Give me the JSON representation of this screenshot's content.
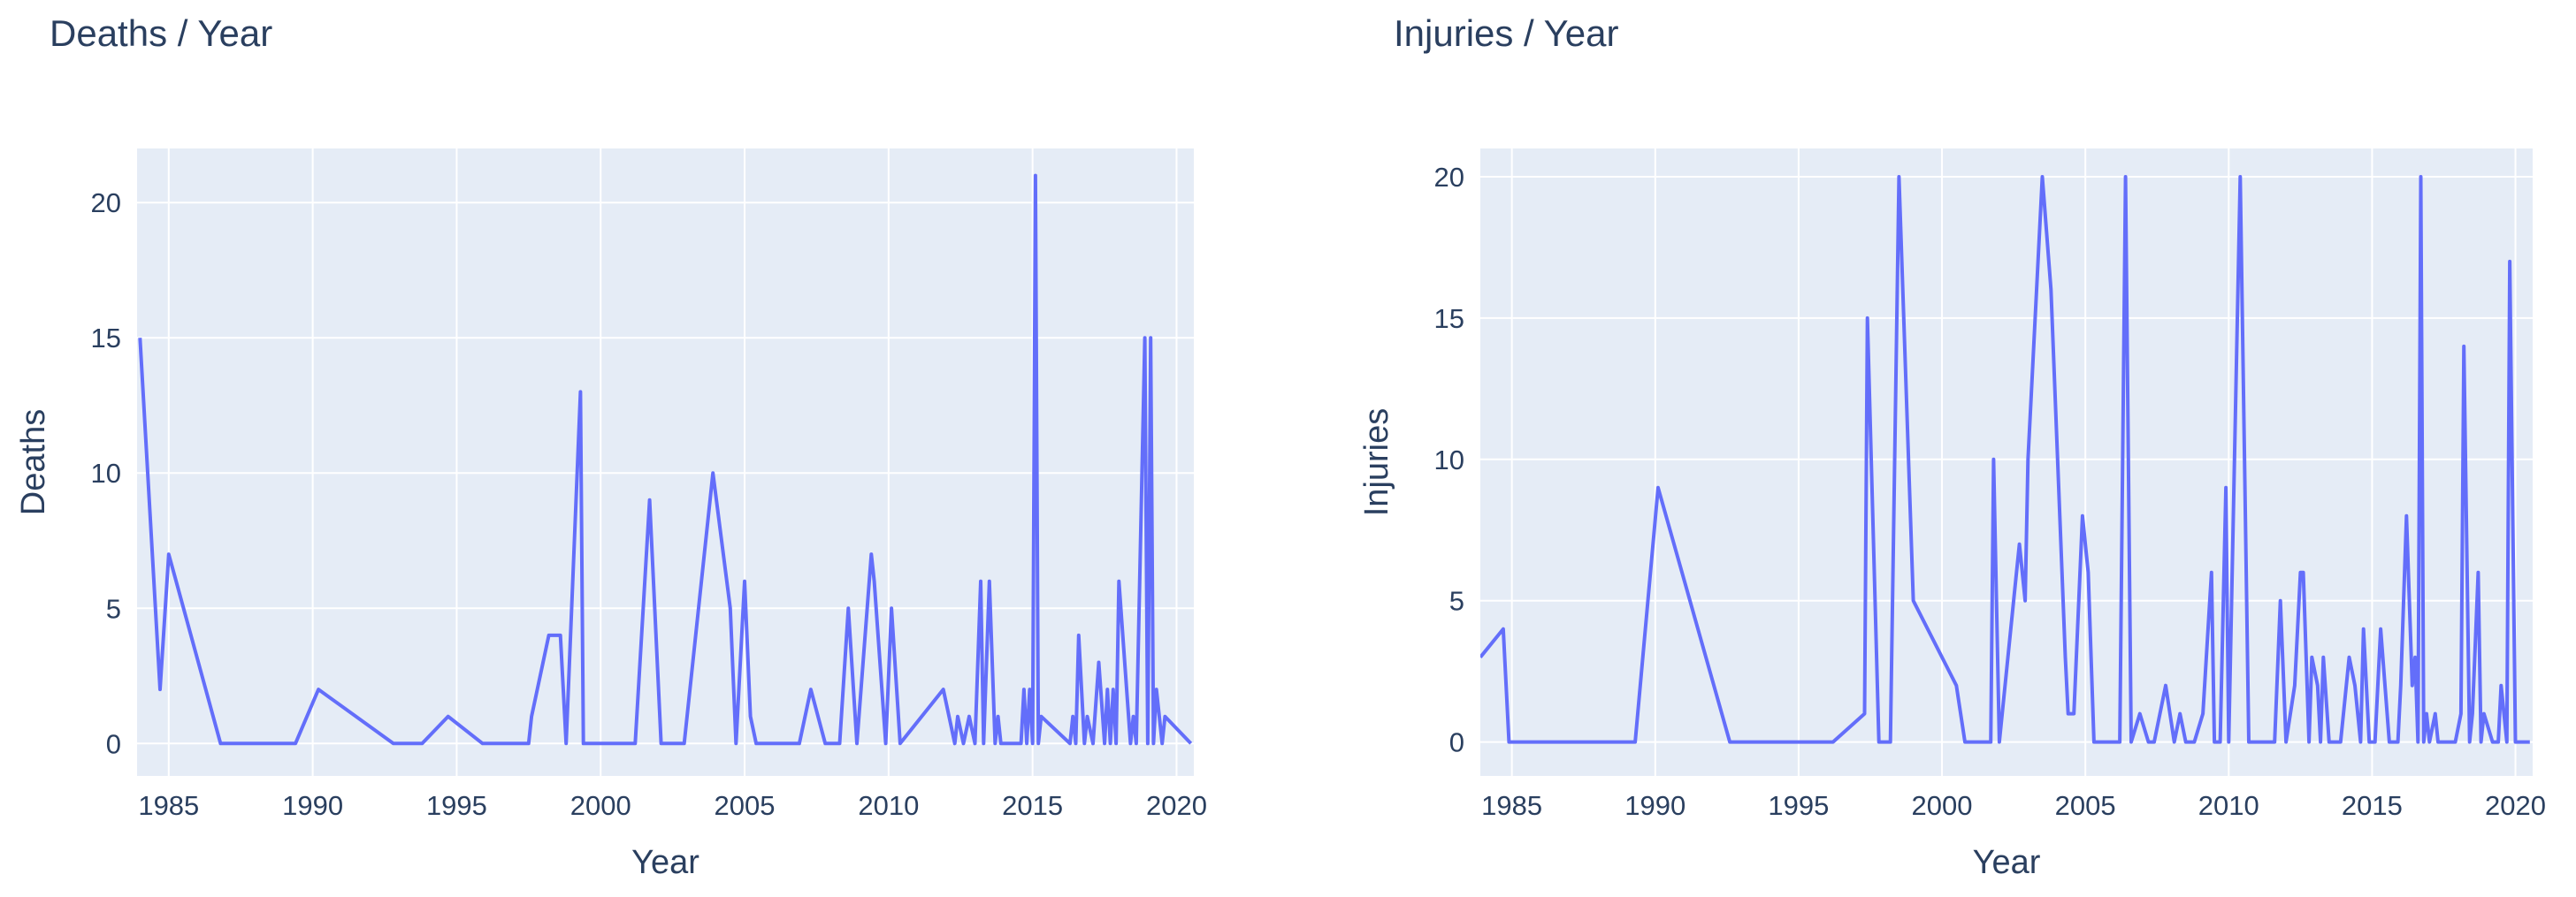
{
  "charts": [
    {
      "title": "Deaths / Year",
      "chart_data": {
        "type": "line",
        "title": "Deaths / Year",
        "xlabel": "Year",
        "ylabel": "Deaths",
        "xlim": [
          1983.9,
          2020.6
        ],
        "ylim": [
          -1.2,
          22
        ],
        "xticks": [
          1985,
          1990,
          1995,
          2000,
          2005,
          2010,
          2015,
          2020
        ],
        "yticks": [
          0,
          5,
          10,
          15,
          20
        ],
        "grid": true,
        "line_color": "#636efa",
        "plot_bg": "#e5ecf6",
        "series": [
          {
            "x": [
              1984.0,
              1984.7,
              1985.0,
              1986.8,
              1989.4,
              1990.2,
              1992.8,
              1993.8,
              1994.7,
              1995.9,
              1997.5,
              1997.6,
              1998.2,
              1998.6,
              1998.8,
              1999.3,
              1999.4,
              2000.1,
              2001.2,
              2001.7,
              2002.1,
              2002.9,
              2003.9,
              2004.5,
              2004.7,
              2005.0,
              2005.2,
              2005.4,
              2006.9,
              2007.3,
              2007.8,
              2008.3,
              2008.6,
              2008.9,
              2009.4,
              2009.5,
              2009.9,
              2010.1,
              2010.4,
              2011.9,
              2012.1,
              2012.3,
              2012.4,
              2012.6,
              2012.8,
              2013.0,
              2013.2,
              2013.3,
              2013.5,
              2013.7,
              2013.8,
              2013.9,
              2014.6,
              2014.7,
              2014.8,
              2014.9,
              2015.0,
              2015.1,
              2015.2,
              2015.3,
              2016.3,
              2016.4,
              2016.5,
              2016.6,
              2016.8,
              2016.9,
              2017.1,
              2017.3,
              2017.5,
              2017.6,
              2017.7,
              2017.8,
              2017.9,
              2018.0,
              2018.4,
              2018.5,
              2018.6,
              2018.9,
              2019.0,
              2019.1,
              2019.2,
              2019.3,
              2019.5,
              2019.6,
              2020.5
            ],
            "y": [
              15,
              2,
              7,
              0,
              0,
              2,
              0,
              0,
              1,
              0,
              0,
              1,
              4,
              4,
              0,
              13,
              0,
              0,
              0,
              9,
              0,
              0,
              10,
              5,
              0,
              6,
              1,
              0,
              0,
              2,
              0,
              0,
              5,
              0,
              7,
              6,
              0,
              5,
              0,
              2,
              1,
              0,
              1,
              0,
              1,
              0,
              6,
              0,
              6,
              0,
              1,
              0,
              0,
              2,
              0,
              2,
              0,
              21,
              0,
              1,
              0,
              1,
              0,
              4,
              0,
              1,
              0,
              3,
              0,
              2,
              0,
              2,
              0,
              6,
              0,
              1,
              0,
              15,
              0,
              15,
              0,
              2,
              0,
              1,
              0
            ]
          }
        ]
      }
    },
    {
      "title": "Injuries / Year",
      "chart_data": {
        "type": "line",
        "title": "Injuries / Year",
        "xlabel": "Year",
        "ylabel": "Injuries",
        "xlim": [
          1983.9,
          2020.6
        ],
        "ylim": [
          -1.2,
          21
        ],
        "xticks": [
          1985,
          1990,
          1995,
          2000,
          2005,
          2010,
          2015,
          2020
        ],
        "yticks": [
          0,
          5,
          10,
          15,
          20
        ],
        "grid": true,
        "line_color": "#636efa",
        "plot_bg": "#e5ecf6",
        "series": [
          {
            "x": [
              1983.9,
              1984.7,
              1984.9,
              1989.3,
              1990.1,
              1992.6,
              1996.2,
              1997.3,
              1997.4,
              1997.8,
              1997.9,
              1998.2,
              1998.5,
              1999.0,
              2000.5,
              2000.8,
              2001.2,
              2001.7,
              2001.8,
              2002.0,
              2002.6,
              2002.7,
              2002.9,
              2003.0,
              2003.5,
              2003.8,
              2004.3,
              2004.4,
              2004.6,
              2004.9,
              2005.1,
              2005.3,
              2005.8,
              2006.2,
              2006.4,
              2006.6,
              2006.9,
              2007.2,
              2007.4,
              2007.8,
              2008.1,
              2008.3,
              2008.5,
              2008.8,
              2009.1,
              2009.4,
              2009.5,
              2009.7,
              2009.9,
              2010.0,
              2010.4,
              2010.7,
              2011.2,
              2011.6,
              2011.8,
              2012.0,
              2012.3,
              2012.5,
              2012.6,
              2012.8,
              2012.9,
              2013.1,
              2013.2,
              2013.3,
              2013.5,
              2013.7,
              2013.9,
              2014.2,
              2014.4,
              2014.6,
              2014.7,
              2014.9,
              2015.1,
              2015.3,
              2015.6,
              2015.9,
              2016.0,
              2016.2,
              2016.4,
              2016.5,
              2016.6,
              2016.7,
              2016.8,
              2016.9,
              2017.0,
              2017.2,
              2017.3,
              2017.4,
              2017.6,
              2017.8,
              2017.9,
              2018.1,
              2018.2,
              2018.4,
              2018.5,
              2018.7,
              2018.8,
              2018.9,
              2019.2,
              2019.4,
              2019.5,
              2019.7,
              2019.8,
              2020.0,
              2020.2,
              2020.5
            ],
            "y": [
              3,
              4,
              0,
              0,
              9,
              0,
              0,
              1,
              15,
              0,
              0,
              0,
              20,
              5,
              2,
              0,
              0,
              0,
              10,
              0,
              6,
              7,
              5,
              10,
              20,
              16,
              3,
              1,
              1,
              8,
              6,
              0,
              0,
              0,
              20,
              0,
              1,
              0,
              0,
              2,
              0,
              1,
              0,
              0,
              1,
              6,
              0,
              0,
              9,
              0,
              20,
              0,
              0,
              0,
              5,
              0,
              2,
              6,
              6,
              0,
              3,
              2,
              0,
              3,
              0,
              0,
              0,
              3,
              2,
              0,
              4,
              0,
              0,
              4,
              0,
              0,
              2,
              8,
              2,
              3,
              0,
              20,
              0,
              1,
              0,
              1,
              0,
              0,
              0,
              0,
              0,
              1,
              14,
              0,
              1,
              6,
              0,
              1,
              0,
              0,
              2,
              0,
              17,
              0,
              0,
              0
            ]
          }
        ]
      }
    }
  ]
}
